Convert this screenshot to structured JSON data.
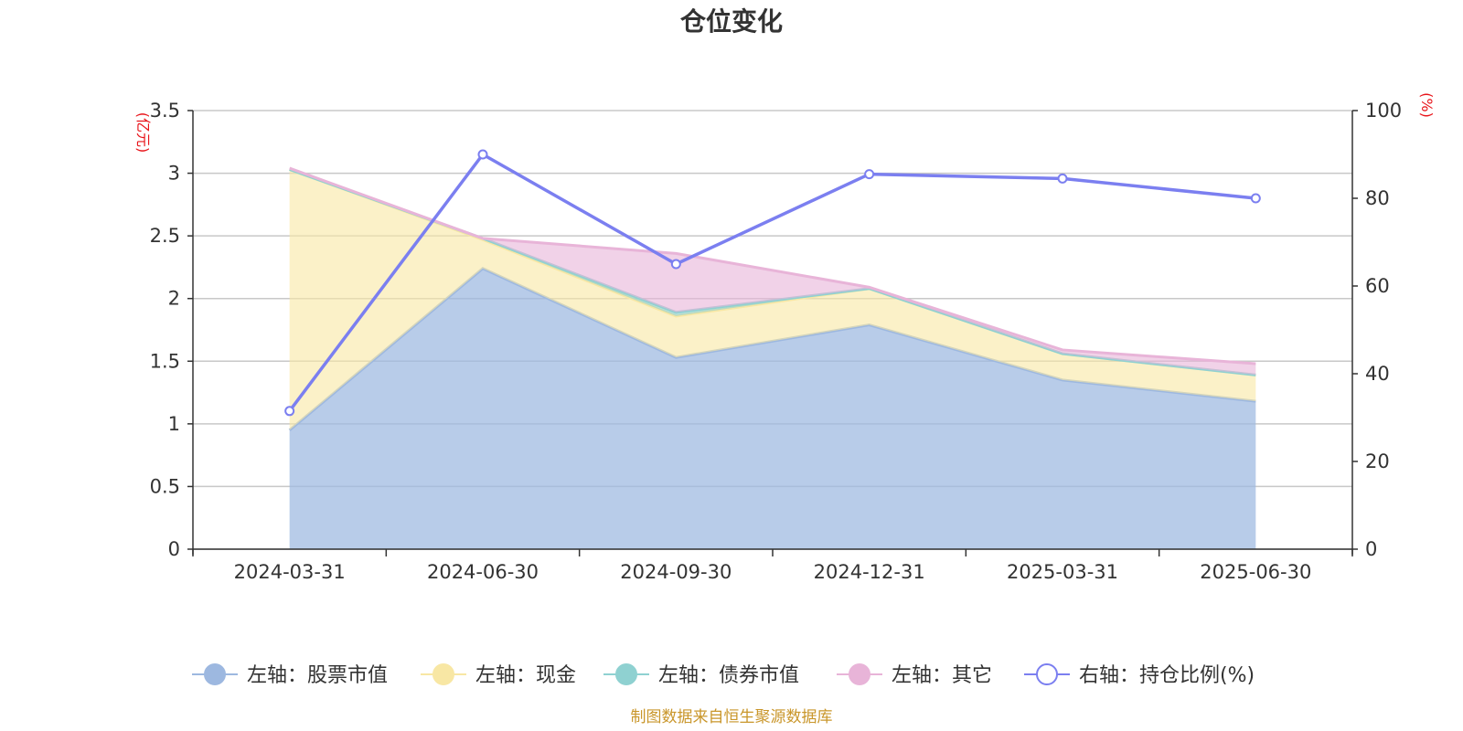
{
  "chart_data": {
    "type": "area",
    "title": "仓位变化",
    "left_unit": "(亿元)",
    "right_unit": "(%)",
    "categories": [
      "2024-03-31",
      "2024-06-30",
      "2024-09-30",
      "2024-12-31",
      "2025-03-31",
      "2025-06-30"
    ],
    "left_axis": {
      "min": 0,
      "max": 3.5,
      "ticks": [
        "0",
        "0.5",
        "1",
        "1.5",
        "2",
        "2.5",
        "3",
        "3.5"
      ]
    },
    "right_axis": {
      "min": 0,
      "max": 100,
      "ticks": [
        "0",
        "20",
        "40",
        "60",
        "80",
        "100"
      ]
    },
    "stacked_series": [
      {
        "name": "左轴：股票市值",
        "color": "#9db8e0",
        "values": [
          0.95,
          2.24,
          1.53,
          1.79,
          1.35,
          1.18
        ]
      },
      {
        "name": "左轴：现金",
        "color": "#f8e7a4",
        "values": [
          2.08,
          0.23,
          0.33,
          0.29,
          0.21,
          0.21
        ]
      },
      {
        "name": "左轴：债券市值",
        "color": "#8fd1d1",
        "values": [
          0.0,
          0.01,
          0.03,
          0.0,
          0.0,
          0.0
        ]
      },
      {
        "name": "左轴：其它",
        "color": "#e8b4d8",
        "values": [
          0.01,
          0.0,
          0.47,
          0.01,
          0.03,
          0.09
        ]
      }
    ],
    "line_series": {
      "name": "右轴：持仓比例(%)",
      "color": "#7b7ff0",
      "values": [
        31.5,
        90.0,
        65.0,
        85.5,
        84.5,
        80.0
      ]
    },
    "grid": true,
    "legend_position": "bottom"
  },
  "source_text": "制图数据来自恒生聚源数据库"
}
